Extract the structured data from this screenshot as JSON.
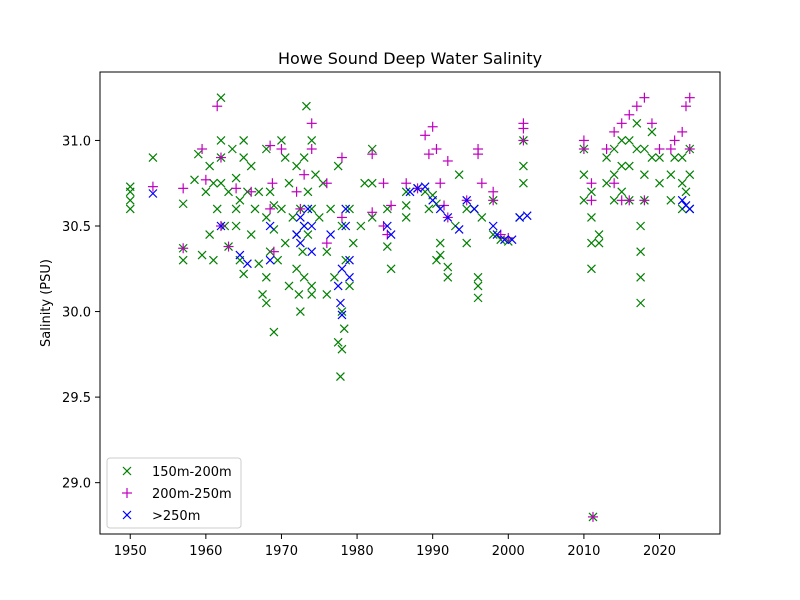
{
  "chart_data": {
    "type": "scatter",
    "title": "Howe Sound Deep Water Salinity",
    "xlabel": "",
    "ylabel": "Salinity (PSU)",
    "xlim": [
      1946,
      2028
    ],
    "ylim": [
      28.7,
      31.4
    ],
    "xticks": [
      1950,
      1960,
      1970,
      1980,
      1990,
      2000,
      2010,
      2020
    ],
    "yticks": [
      29.0,
      29.5,
      30.0,
      30.5,
      31.0
    ],
    "ytick_labels": [
      "29.0",
      "29.5",
      "30.0",
      "30.5",
      "31.0"
    ],
    "grid": false,
    "legend_position": "lower-left",
    "series": [
      {
        "name": "150m-200m",
        "marker": "x",
        "color": "#008000",
        "points": [
          [
            1950,
            30.6
          ],
          [
            1950,
            30.65
          ],
          [
            1950,
            30.7
          ],
          [
            1950,
            30.73
          ],
          [
            1953,
            30.9
          ],
          [
            1957,
            30.3
          ],
          [
            1957,
            30.37
          ],
          [
            1957,
            30.63
          ],
          [
            1958.5,
            30.77
          ],
          [
            1959,
            30.92
          ],
          [
            1959.5,
            30.33
          ],
          [
            1960,
            30.7
          ],
          [
            1960.5,
            30.85
          ],
          [
            1960.5,
            30.45
          ],
          [
            1961,
            30.3
          ],
          [
            1961,
            30.75
          ],
          [
            1961.5,
            30.6
          ],
          [
            1962,
            31.0
          ],
          [
            1962,
            30.9
          ],
          [
            1962,
            30.75
          ],
          [
            1962,
            31.25
          ],
          [
            1962.5,
            30.5
          ],
          [
            1963,
            30.38
          ],
          [
            1963,
            30.7
          ],
          [
            1963.5,
            30.95
          ],
          [
            1964,
            30.6
          ],
          [
            1964,
            30.78
          ],
          [
            1964,
            30.5
          ],
          [
            1964.5,
            30.65
          ],
          [
            1964.5,
            30.3
          ],
          [
            1965,
            31.0
          ],
          [
            1965,
            30.9
          ],
          [
            1965,
            30.22
          ],
          [
            1965.5,
            30.7
          ],
          [
            1966,
            30.45
          ],
          [
            1966,
            30.85
          ],
          [
            1966.5,
            30.6
          ],
          [
            1967,
            30.28
          ],
          [
            1967,
            30.7
          ],
          [
            1967.5,
            30.1
          ],
          [
            1968,
            30.95
          ],
          [
            1968,
            30.55
          ],
          [
            1968,
            30.2
          ],
          [
            1968,
            30.05
          ],
          [
            1968.5,
            30.7
          ],
          [
            1968.5,
            30.35
          ],
          [
            1969,
            29.88
          ],
          [
            1969,
            30.48
          ],
          [
            1969,
            30.62
          ],
          [
            1969.5,
            30.3
          ],
          [
            1970,
            31.0
          ],
          [
            1970,
            30.6
          ],
          [
            1970.5,
            30.9
          ],
          [
            1970.5,
            30.4
          ],
          [
            1971,
            30.75
          ],
          [
            1971,
            30.15
          ],
          [
            1971.5,
            30.55
          ],
          [
            1972,
            30.85
          ],
          [
            1972,
            30.45
          ],
          [
            1972,
            30.25
          ],
          [
            1972.3,
            30.1
          ],
          [
            1972.5,
            30.6
          ],
          [
            1972.5,
            30.0
          ],
          [
            1972.8,
            30.35
          ],
          [
            1973,
            30.9
          ],
          [
            1973,
            30.5
          ],
          [
            1973,
            30.2
          ],
          [
            1973.3,
            31.2
          ],
          [
            1973.5,
            30.7
          ],
          [
            1973.5,
            30.45
          ],
          [
            1974,
            31.0
          ],
          [
            1974,
            30.6
          ],
          [
            1974,
            30.15
          ],
          [
            1974,
            30.1
          ],
          [
            1974.5,
            30.8
          ],
          [
            1975,
            30.55
          ],
          [
            1975.5,
            30.75
          ],
          [
            1976,
            30.35
          ],
          [
            1976,
            30.1
          ],
          [
            1976.5,
            30.6
          ],
          [
            1977,
            30.2
          ],
          [
            1977.5,
            30.85
          ],
          [
            1977.5,
            29.82
          ],
          [
            1977.8,
            29.62
          ],
          [
            1978,
            30.5
          ],
          [
            1978,
            30.0
          ],
          [
            1978,
            29.78
          ],
          [
            1978.3,
            29.9
          ],
          [
            1978.5,
            30.3
          ],
          [
            1979,
            30.6
          ],
          [
            1979,
            30.15
          ],
          [
            1979.5,
            30.4
          ],
          [
            1980.5,
            30.5
          ],
          [
            1981,
            30.75
          ],
          [
            1982,
            30.95
          ],
          [
            1982,
            30.75
          ],
          [
            1982,
            30.55
          ],
          [
            1984,
            30.38
          ],
          [
            1984,
            30.6
          ],
          [
            1984.5,
            30.25
          ],
          [
            1986.5,
            30.7
          ],
          [
            1986.5,
            30.55
          ],
          [
            1986.5,
            30.62
          ],
          [
            1988,
            30.72
          ],
          [
            1989,
            30.7
          ],
          [
            1989.5,
            30.6
          ],
          [
            1990,
            30.68
          ],
          [
            1990.5,
            30.63
          ],
          [
            1990.5,
            30.3
          ],
          [
            1991,
            30.4
          ],
          [
            1991,
            30.33
          ],
          [
            1992,
            30.2
          ],
          [
            1992,
            30.26
          ],
          [
            1993,
            30.5
          ],
          [
            1993.5,
            30.8
          ],
          [
            1994.5,
            30.6
          ],
          [
            1994.5,
            30.4
          ],
          [
            1995.5,
            30.6
          ],
          [
            1996,
            30.2
          ],
          [
            1996,
            30.08
          ],
          [
            1996,
            30.15
          ],
          [
            1996.5,
            30.55
          ],
          [
            1998,
            30.45
          ],
          [
            1998,
            30.65
          ],
          [
            1999,
            30.42
          ],
          [
            2000,
            30.41
          ],
          [
            2001.5,
            30.55
          ],
          [
            2002,
            30.75
          ],
          [
            2002,
            30.85
          ],
          [
            2002,
            31.0
          ],
          [
            2010,
            30.65
          ],
          [
            2010,
            30.8
          ],
          [
            2010,
            30.95
          ],
          [
            2011,
            30.25
          ],
          [
            2011,
            30.4
          ],
          [
            2011,
            30.55
          ],
          [
            2011,
            30.7
          ],
          [
            2011.2,
            28.8
          ],
          [
            2012,
            30.45
          ],
          [
            2012,
            30.4
          ],
          [
            2013,
            30.75
          ],
          [
            2013,
            30.9
          ],
          [
            2014,
            30.65
          ],
          [
            2014,
            30.8
          ],
          [
            2014,
            30.95
          ],
          [
            2015,
            30.7
          ],
          [
            2015,
            30.85
          ],
          [
            2015,
            31.0
          ],
          [
            2016,
            30.85
          ],
          [
            2016,
            31.0
          ],
          [
            2016,
            30.65
          ],
          [
            2017,
            30.95
          ],
          [
            2017,
            31.1
          ],
          [
            2017.5,
            30.05
          ],
          [
            2017.5,
            30.2
          ],
          [
            2017.5,
            30.35
          ],
          [
            2017.5,
            30.5
          ],
          [
            2018,
            30.8
          ],
          [
            2018,
            30.95
          ],
          [
            2018,
            30.65
          ],
          [
            2019,
            30.9
          ],
          [
            2019,
            31.05
          ],
          [
            2020,
            30.75
          ],
          [
            2020,
            30.9
          ],
          [
            2021.5,
            30.65
          ],
          [
            2021.5,
            30.8
          ],
          [
            2022,
            30.9
          ],
          [
            2023,
            30.6
          ],
          [
            2023,
            30.75
          ],
          [
            2023,
            30.9
          ],
          [
            2023.5,
            30.7
          ],
          [
            2024,
            30.6
          ],
          [
            2024,
            30.8
          ],
          [
            2024,
            30.95
          ]
        ]
      },
      {
        "name": "200m-250m",
        "marker": "+",
        "color": "#bf00bf",
        "points": [
          [
            1953,
            30.73
          ],
          [
            1957,
            30.72
          ],
          [
            1957,
            30.37
          ],
          [
            1959.5,
            30.95
          ],
          [
            1960,
            30.77
          ],
          [
            1961.5,
            31.2
          ],
          [
            1962,
            30.9
          ],
          [
            1962,
            30.5
          ],
          [
            1963,
            30.38
          ],
          [
            1964,
            30.72
          ],
          [
            1966,
            30.7
          ],
          [
            1968.5,
            30.97
          ],
          [
            1968.5,
            30.6
          ],
          [
            1968.8,
            30.75
          ],
          [
            1969,
            30.35
          ],
          [
            1970,
            30.95
          ],
          [
            1972,
            30.7
          ],
          [
            1972.5,
            30.6
          ],
          [
            1973,
            30.8
          ],
          [
            1974,
            31.1
          ],
          [
            1974,
            30.95
          ],
          [
            1976,
            30.75
          ],
          [
            1976,
            30.4
          ],
          [
            1978,
            30.55
          ],
          [
            1978,
            30.9
          ],
          [
            1982,
            30.92
          ],
          [
            1982,
            30.58
          ],
          [
            1983.5,
            30.75
          ],
          [
            1983.5,
            30.5
          ],
          [
            1984,
            30.45
          ],
          [
            1984.5,
            30.62
          ],
          [
            1986.5,
            30.75
          ],
          [
            1988,
            30.72
          ],
          [
            1989,
            31.03
          ],
          [
            1989.5,
            30.92
          ],
          [
            1990,
            31.08
          ],
          [
            1990.5,
            30.95
          ],
          [
            1991,
            30.75
          ],
          [
            1991.5,
            30.62
          ],
          [
            1992,
            30.55
          ],
          [
            1992,
            30.88
          ],
          [
            1994.5,
            30.65
          ],
          [
            1996,
            30.95
          ],
          [
            1996,
            30.92
          ],
          [
            1996.5,
            30.75
          ],
          [
            1998,
            30.65
          ],
          [
            1998,
            30.7
          ],
          [
            1999,
            30.45
          ],
          [
            2000,
            30.43
          ],
          [
            2002,
            31.0
          ],
          [
            2002,
            31.07
          ],
          [
            2002,
            31.1
          ],
          [
            2010,
            30.95
          ],
          [
            2010,
            31.0
          ],
          [
            2011,
            30.75
          ],
          [
            2011,
            30.65
          ],
          [
            2011.2,
            28.8
          ],
          [
            2013,
            30.95
          ],
          [
            2014,
            30.75
          ],
          [
            2014,
            31.05
          ],
          [
            2015,
            30.65
          ],
          [
            2015,
            31.1
          ],
          [
            2016,
            30.65
          ],
          [
            2016,
            31.15
          ],
          [
            2017,
            31.2
          ],
          [
            2018,
            30.65
          ],
          [
            2018,
            31.25
          ],
          [
            2019,
            31.1
          ],
          [
            2020,
            30.95
          ],
          [
            2021.5,
            30.95
          ],
          [
            2022,
            31.0
          ],
          [
            2023,
            31.05
          ],
          [
            2023.5,
            31.2
          ],
          [
            2024,
            31.25
          ],
          [
            2024,
            30.95
          ]
        ]
      },
      {
        "name": ">250m",
        "marker": "x",
        "color": "#0000ff",
        "points": [
          [
            1953,
            30.69
          ],
          [
            1962,
            30.5
          ],
          [
            1964.5,
            30.33
          ],
          [
            1965.5,
            30.28
          ],
          [
            1968.5,
            30.5
          ],
          [
            1968.5,
            30.3
          ],
          [
            1972,
            30.45
          ],
          [
            1972.5,
            30.55
          ],
          [
            1972.5,
            30.4
          ],
          [
            1973,
            30.5
          ],
          [
            1973.5,
            30.6
          ],
          [
            1974,
            30.5
          ],
          [
            1974,
            30.35
          ],
          [
            1976.5,
            30.45
          ],
          [
            1977.5,
            30.15
          ],
          [
            1977.8,
            30.05
          ],
          [
            1978,
            30.25
          ],
          [
            1978,
            29.98
          ],
          [
            1978.5,
            30.6
          ],
          [
            1978.5,
            30.5
          ],
          [
            1979,
            30.2
          ],
          [
            1979,
            30.3
          ],
          [
            1984,
            30.5
          ],
          [
            1984.5,
            30.45
          ],
          [
            1987,
            30.7
          ],
          [
            1988,
            30.72
          ],
          [
            1989,
            30.73
          ],
          [
            1990,
            30.65
          ],
          [
            1991,
            30.6
          ],
          [
            1992,
            30.55
          ],
          [
            1993.5,
            30.48
          ],
          [
            1994.5,
            30.65
          ],
          [
            1995.5,
            30.6
          ],
          [
            1998,
            30.5
          ],
          [
            1998.5,
            30.45
          ],
          [
            1999.5,
            30.42
          ],
          [
            2000.5,
            30.42
          ],
          [
            2001.5,
            30.55
          ],
          [
            2002.5,
            30.56
          ],
          [
            2023,
            30.65
          ],
          [
            2023.5,
            30.62
          ],
          [
            2024,
            30.6
          ]
        ]
      }
    ]
  }
}
